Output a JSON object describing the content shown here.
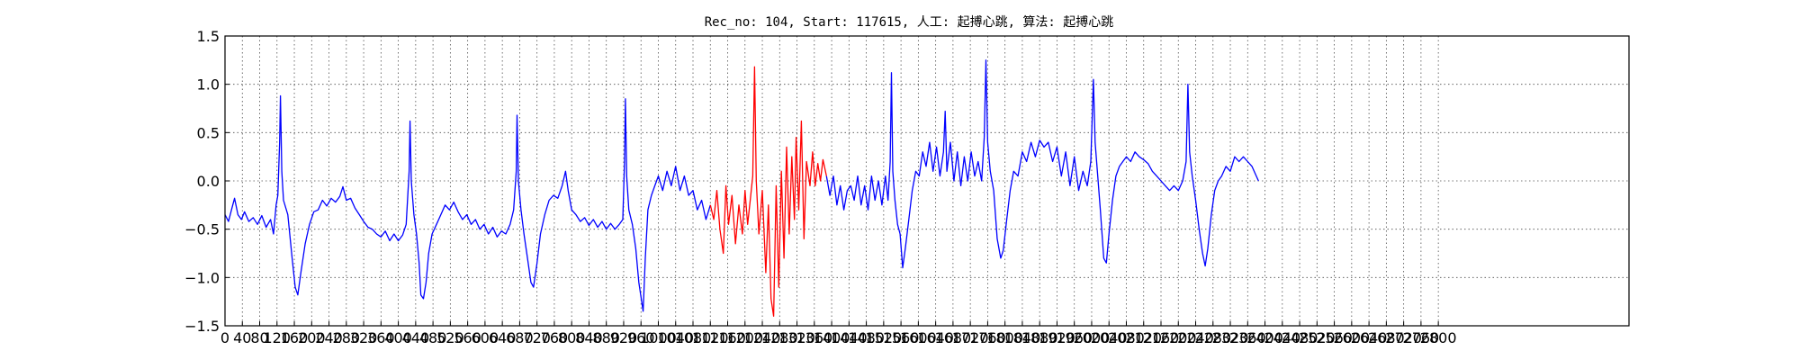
{
  "chart_data": {
    "type": "line",
    "title": "Rec_no: 104, Start: 117615, 人工: 起搏心跳, 算法: 起搏心跳",
    "xlabel": "",
    "ylabel": "",
    "xlim": [
      0,
      3240
    ],
    "ylim": [
      -1.5,
      1.5
    ],
    "grid": true,
    "x_ticks": [
      0,
      40,
      80,
      120,
      160,
      200,
      240,
      280,
      320,
      360,
      400,
      440,
      480,
      520,
      560,
      600,
      640,
      680,
      720,
      760,
      800,
      840,
      880,
      920,
      960,
      1000,
      1040,
      1080,
      1120,
      1160,
      1200,
      1240,
      1280,
      1320,
      1360,
      1400,
      1440,
      1480,
      1520,
      1560,
      1600,
      1640,
      1680,
      1720,
      1760,
      1800,
      1840,
      1880,
      1920,
      1960,
      2000,
      2040,
      2080,
      2120,
      2160,
      2200,
      2240,
      2280,
      2320,
      2360,
      2400,
      2440,
      2480,
      2520,
      2560,
      2600,
      2640,
      2680,
      2720,
      2760,
      2800
    ],
    "y_ticks": [
      -1.5,
      -1.0,
      -0.5,
      0.0,
      0.5,
      1.0,
      1.5
    ],
    "y_tick_labels": [
      "−1.5",
      "−1.0",
      "−0.5",
      "0.0",
      "0.5",
      "1.0",
      "1.5"
    ],
    "series": [
      {
        "color": "#0000ff",
        "points": [
          [
            0,
            -0.35
          ],
          [
            8,
            -0.42
          ],
          [
            15,
            -0.3
          ],
          [
            22,
            -0.18
          ],
          [
            30,
            -0.35
          ],
          [
            38,
            -0.4
          ],
          [
            45,
            -0.32
          ],
          [
            55,
            -0.42
          ],
          [
            65,
            -0.38
          ],
          [
            75,
            -0.45
          ],
          [
            85,
            -0.36
          ],
          [
            95,
            -0.48
          ],
          [
            105,
            -0.4
          ],
          [
            112,
            -0.55
          ],
          [
            118,
            -0.25
          ],
          [
            122,
            -0.15
          ],
          [
            126,
            0.4
          ],
          [
            128,
            0.88
          ],
          [
            131,
            0.1
          ],
          [
            135,
            -0.2
          ],
          [
            145,
            -0.35
          ],
          [
            155,
            -0.8
          ],
          [
            162,
            -1.1
          ],
          [
            168,
            -1.18
          ],
          [
            175,
            -0.95
          ],
          [
            185,
            -0.65
          ],
          [
            195,
            -0.45
          ],
          [
            205,
            -0.32
          ],
          [
            215,
            -0.3
          ],
          [
            225,
            -0.2
          ],
          [
            235,
            -0.26
          ],
          [
            245,
            -0.18
          ],
          [
            255,
            -0.22
          ],
          [
            265,
            -0.16
          ],
          [
            272,
            -0.06
          ],
          [
            280,
            -0.2
          ],
          [
            290,
            -0.18
          ],
          [
            300,
            -0.28
          ],
          [
            310,
            -0.35
          ],
          [
            320,
            -0.42
          ],
          [
            330,
            -0.48
          ],
          [
            340,
            -0.5
          ],
          [
            350,
            -0.55
          ],
          [
            360,
            -0.58
          ],
          [
            370,
            -0.52
          ],
          [
            380,
            -0.62
          ],
          [
            390,
            -0.55
          ],
          [
            400,
            -0.62
          ],
          [
            410,
            -0.56
          ],
          [
            418,
            -0.45
          ],
          [
            425,
            0.1
          ],
          [
            427,
            0.62
          ],
          [
            430,
            0.0
          ],
          [
            436,
            -0.35
          ],
          [
            442,
            -0.55
          ],
          [
            448,
            -0.85
          ],
          [
            452,
            -1.18
          ],
          [
            458,
            -1.22
          ],
          [
            464,
            -1.05
          ],
          [
            470,
            -0.75
          ],
          [
            478,
            -0.55
          ],
          [
            488,
            -0.45
          ],
          [
            498,
            -0.35
          ],
          [
            508,
            -0.25
          ],
          [
            518,
            -0.3
          ],
          [
            528,
            -0.22
          ],
          [
            538,
            -0.32
          ],
          [
            548,
            -0.4
          ],
          [
            558,
            -0.35
          ],
          [
            568,
            -0.45
          ],
          [
            578,
            -0.4
          ],
          [
            588,
            -0.5
          ],
          [
            598,
            -0.45
          ],
          [
            608,
            -0.55
          ],
          [
            618,
            -0.48
          ],
          [
            628,
            -0.58
          ],
          [
            638,
            -0.52
          ],
          [
            648,
            -0.55
          ],
          [
            658,
            -0.45
          ],
          [
            666,
            -0.3
          ],
          [
            672,
            0.1
          ],
          [
            674,
            0.68
          ],
          [
            677,
            0.0
          ],
          [
            683,
            -0.3
          ],
          [
            690,
            -0.55
          ],
          [
            698,
            -0.8
          ],
          [
            706,
            -1.05
          ],
          [
            712,
            -1.1
          ],
          [
            720,
            -0.85
          ],
          [
            728,
            -0.55
          ],
          [
            738,
            -0.35
          ],
          [
            748,
            -0.2
          ],
          [
            758,
            -0.15
          ],
          [
            768,
            -0.18
          ],
          [
            778,
            -0.05
          ],
          [
            786,
            0.1
          ],
          [
            792,
            -0.1
          ],
          [
            800,
            -0.3
          ],
          [
            810,
            -0.35
          ],
          [
            820,
            -0.42
          ],
          [
            830,
            -0.38
          ],
          [
            840,
            -0.46
          ],
          [
            850,
            -0.4
          ],
          [
            860,
            -0.48
          ],
          [
            870,
            -0.42
          ],
          [
            880,
            -0.5
          ],
          [
            890,
            -0.44
          ],
          [
            900,
            -0.5
          ],
          [
            910,
            -0.45
          ],
          [
            918,
            -0.4
          ],
          [
            922,
            0.2
          ],
          [
            924,
            0.85
          ],
          [
            927,
            0.05
          ],
          [
            932,
            -0.3
          ],
          [
            940,
            -0.45
          ],
          [
            948,
            -0.7
          ],
          [
            955,
            -1.05
          ],
          [
            960,
            -1.2
          ],
          [
            965,
            -1.35
          ],
          [
            970,
            -0.8
          ],
          [
            976,
            -0.3
          ],
          [
            984,
            -0.15
          ],
          [
            992,
            -0.05
          ],
          [
            1000,
            0.05
          ],
          [
            1010,
            -0.1
          ],
          [
            1020,
            0.1
          ],
          [
            1030,
            -0.05
          ],
          [
            1040,
            0.15
          ],
          [
            1050,
            -0.1
          ],
          [
            1060,
            0.05
          ],
          [
            1070,
            -0.15
          ],
          [
            1080,
            -0.1
          ],
          [
            1090,
            -0.3
          ],
          [
            1100,
            -0.2
          ],
          [
            1110,
            -0.4
          ],
          [
            1120,
            -0.25
          ]
        ]
      },
      {
        "color": "#ff0000",
        "points": [
          [
            1120,
            -0.25
          ],
          [
            1128,
            -0.4
          ],
          [
            1135,
            -0.1
          ],
          [
            1142,
            -0.5
          ],
          [
            1150,
            -0.75
          ],
          [
            1156,
            -0.05
          ],
          [
            1162,
            -0.45
          ],
          [
            1170,
            -0.15
          ],
          [
            1178,
            -0.65
          ],
          [
            1186,
            -0.25
          ],
          [
            1194,
            -0.55
          ],
          [
            1200,
            -0.1
          ],
          [
            1206,
            -0.45
          ],
          [
            1212,
            -0.2
          ],
          [
            1218,
            0.05
          ],
          [
            1222,
            1.18
          ],
          [
            1226,
            0.0
          ],
          [
            1232,
            -0.55
          ],
          [
            1240,
            -0.1
          ],
          [
            1248,
            -0.95
          ],
          [
            1254,
            -0.25
          ],
          [
            1260,
            -1.22
          ],
          [
            1266,
            -1.4
          ],
          [
            1272,
            -0.05
          ],
          [
            1278,
            -1.1
          ],
          [
            1284,
            0.1
          ],
          [
            1290,
            -0.8
          ],
          [
            1296,
            0.35
          ],
          [
            1302,
            -0.55
          ],
          [
            1308,
            0.25
          ],
          [
            1314,
            -0.4
          ],
          [
            1318,
            0.45
          ],
          [
            1324,
            -0.3
          ],
          [
            1330,
            0.62
          ],
          [
            1336,
            -0.6
          ],
          [
            1342,
            0.2
          ],
          [
            1350,
            -0.05
          ],
          [
            1356,
            0.3
          ],
          [
            1362,
            -0.05
          ],
          [
            1368,
            0.18
          ],
          [
            1374,
            0.0
          ],
          [
            1380,
            0.22
          ],
          [
            1388,
            0.05
          ]
        ]
      },
      {
        "color": "#0000ff",
        "points": [
          [
            1388,
            0.05
          ],
          [
            1396,
            -0.15
          ],
          [
            1404,
            0.05
          ],
          [
            1412,
            -0.25
          ],
          [
            1420,
            -0.05
          ],
          [
            1428,
            -0.3
          ],
          [
            1436,
            -0.1
          ],
          [
            1444,
            -0.05
          ],
          [
            1452,
            -0.2
          ],
          [
            1460,
            0.05
          ],
          [
            1468,
            -0.25
          ],
          [
            1476,
            -0.05
          ],
          [
            1484,
            -0.3
          ],
          [
            1492,
            0.05
          ],
          [
            1500,
            -0.2
          ],
          [
            1508,
            0.0
          ],
          [
            1516,
            -0.25
          ],
          [
            1524,
            0.05
          ],
          [
            1530,
            -0.2
          ],
          [
            1535,
            0.2
          ],
          [
            1538,
            1.12
          ],
          [
            1541,
            0.1
          ],
          [
            1546,
            -0.2
          ],
          [
            1552,
            -0.45
          ],
          [
            1558,
            -0.55
          ],
          [
            1564,
            -0.9
          ],
          [
            1570,
            -0.7
          ],
          [
            1578,
            -0.4
          ],
          [
            1586,
            -0.1
          ],
          [
            1594,
            0.1
          ],
          [
            1602,
            0.05
          ],
          [
            1610,
            0.3
          ],
          [
            1618,
            0.15
          ],
          [
            1626,
            0.4
          ],
          [
            1634,
            0.1
          ],
          [
            1642,
            0.35
          ],
          [
            1650,
            0.05
          ],
          [
            1658,
            0.3
          ],
          [
            1662,
            0.72
          ],
          [
            1666,
            0.1
          ],
          [
            1674,
            0.4
          ],
          [
            1682,
            0.0
          ],
          [
            1690,
            0.3
          ],
          [
            1698,
            -0.05
          ],
          [
            1706,
            0.25
          ],
          [
            1714,
            0.0
          ],
          [
            1722,
            0.3
          ],
          [
            1730,
            0.05
          ],
          [
            1738,
            0.2
          ],
          [
            1746,
            0.0
          ],
          [
            1752,
            0.45
          ],
          [
            1756,
            1.25
          ],
          [
            1760,
            0.4
          ],
          [
            1766,
            0.1
          ],
          [
            1774,
            -0.1
          ],
          [
            1782,
            -0.6
          ],
          [
            1790,
            -0.8
          ],
          [
            1796,
            -0.72
          ],
          [
            1804,
            -0.4
          ],
          [
            1812,
            -0.1
          ],
          [
            1820,
            0.1
          ],
          [
            1830,
            0.05
          ],
          [
            1840,
            0.3
          ],
          [
            1850,
            0.2
          ],
          [
            1860,
            0.4
          ],
          [
            1870,
            0.25
          ],
          [
            1880,
            0.42
          ],
          [
            1890,
            0.35
          ],
          [
            1900,
            0.4
          ],
          [
            1910,
            0.2
          ],
          [
            1920,
            0.35
          ],
          [
            1930,
            0.05
          ],
          [
            1940,
            0.3
          ],
          [
            1950,
            -0.05
          ],
          [
            1960,
            0.25
          ],
          [
            1970,
            -0.1
          ],
          [
            1980,
            0.1
          ],
          [
            1990,
            -0.05
          ],
          [
            1998,
            0.2
          ],
          [
            2004,
            1.05
          ],
          [
            2008,
            0.4
          ],
          [
            2014,
            0.05
          ],
          [
            2020,
            -0.3
          ],
          [
            2028,
            -0.8
          ],
          [
            2034,
            -0.85
          ],
          [
            2040,
            -0.55
          ],
          [
            2048,
            -0.2
          ],
          [
            2056,
            0.05
          ],
          [
            2064,
            0.15
          ],
          [
            2072,
            0.2
          ],
          [
            2080,
            0.25
          ],
          [
            2090,
            0.2
          ],
          [
            2100,
            0.3
          ],
          [
            2110,
            0.25
          ],
          [
            2120,
            0.22
          ],
          [
            2130,
            0.18
          ],
          [
            2140,
            0.1
          ],
          [
            2150,
            0.05
          ],
          [
            2160,
            0.0
          ],
          [
            2170,
            -0.05
          ],
          [
            2180,
            -0.1
          ],
          [
            2190,
            -0.05
          ],
          [
            2200,
            -0.1
          ],
          [
            2210,
            0.0
          ],
          [
            2218,
            0.2
          ],
          [
            2222,
            1.0
          ],
          [
            2226,
            0.3
          ],
          [
            2232,
            0.05
          ],
          [
            2240,
            -0.2
          ],
          [
            2248,
            -0.5
          ],
          [
            2256,
            -0.75
          ],
          [
            2262,
            -0.88
          ],
          [
            2268,
            -0.7
          ],
          [
            2276,
            -0.35
          ],
          [
            2284,
            -0.1
          ],
          [
            2292,
            0.0
          ],
          [
            2300,
            0.05
          ],
          [
            2310,
            0.15
          ],
          [
            2320,
            0.1
          ],
          [
            2330,
            0.25
          ],
          [
            2340,
            0.2
          ],
          [
            2350,
            0.25
          ],
          [
            2360,
            0.2
          ],
          [
            2370,
            0.15
          ],
          [
            2380,
            0.05
          ],
          [
            2385,
            0.0
          ]
        ]
      }
    ]
  }
}
